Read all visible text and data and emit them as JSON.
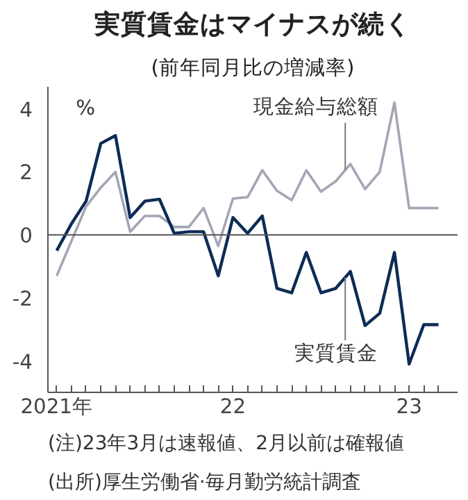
{
  "chart_data": {
    "type": "line",
    "title": "実質賃金はマイナスが続く",
    "subtitle": "(前年同月比の増減率)",
    "categories": [
      "2021年",
      null,
      null,
      null,
      null,
      null,
      null,
      null,
      null,
      null,
      null,
      null,
      "22",
      null,
      null,
      null,
      null,
      null,
      null,
      null,
      null,
      null,
      null,
      null,
      "23",
      null,
      null
    ],
    "series": [
      {
        "name": "現金給与総額",
        "color": "#a3a6b4",
        "values": [
          -1.3,
          -0.2,
          0.9,
          1.5,
          2.0,
          0.1,
          0.6,
          0.6,
          0.25,
          0.25,
          0.85,
          -0.35,
          1.15,
          1.2,
          2.05,
          1.4,
          1.1,
          2.05,
          1.37,
          1.7,
          2.25,
          1.45,
          2.0,
          4.2,
          0.85,
          0.85,
          0.85
        ]
      },
      {
        "name": "実質賃金",
        "color": "#0d2b55",
        "values": [
          -0.5,
          0.35,
          1.07,
          2.9,
          3.15,
          0.55,
          1.07,
          1.13,
          0.05,
          0.1,
          0.1,
          -1.3,
          0.55,
          0.05,
          0.6,
          -1.7,
          -1.84,
          -0.56,
          -1.84,
          -1.7,
          -1.16,
          -2.88,
          -2.49,
          -0.56,
          -4.1,
          -2.85,
          -2.85
        ]
      }
    ],
    "ylim": [
      -5,
      4.7
    ],
    "yticks": [
      -4,
      -2,
      0,
      2,
      4
    ],
    "grid": false,
    "ref_lines": [
      {
        "axis": "y",
        "value": 0,
        "color": "#555555"
      }
    ],
    "annotations": [
      "%",
      "(注)23年3月は速報値、2月以前は確報値",
      "(出所)厚生労働省·毎月勤労統計調査"
    ]
  }
}
